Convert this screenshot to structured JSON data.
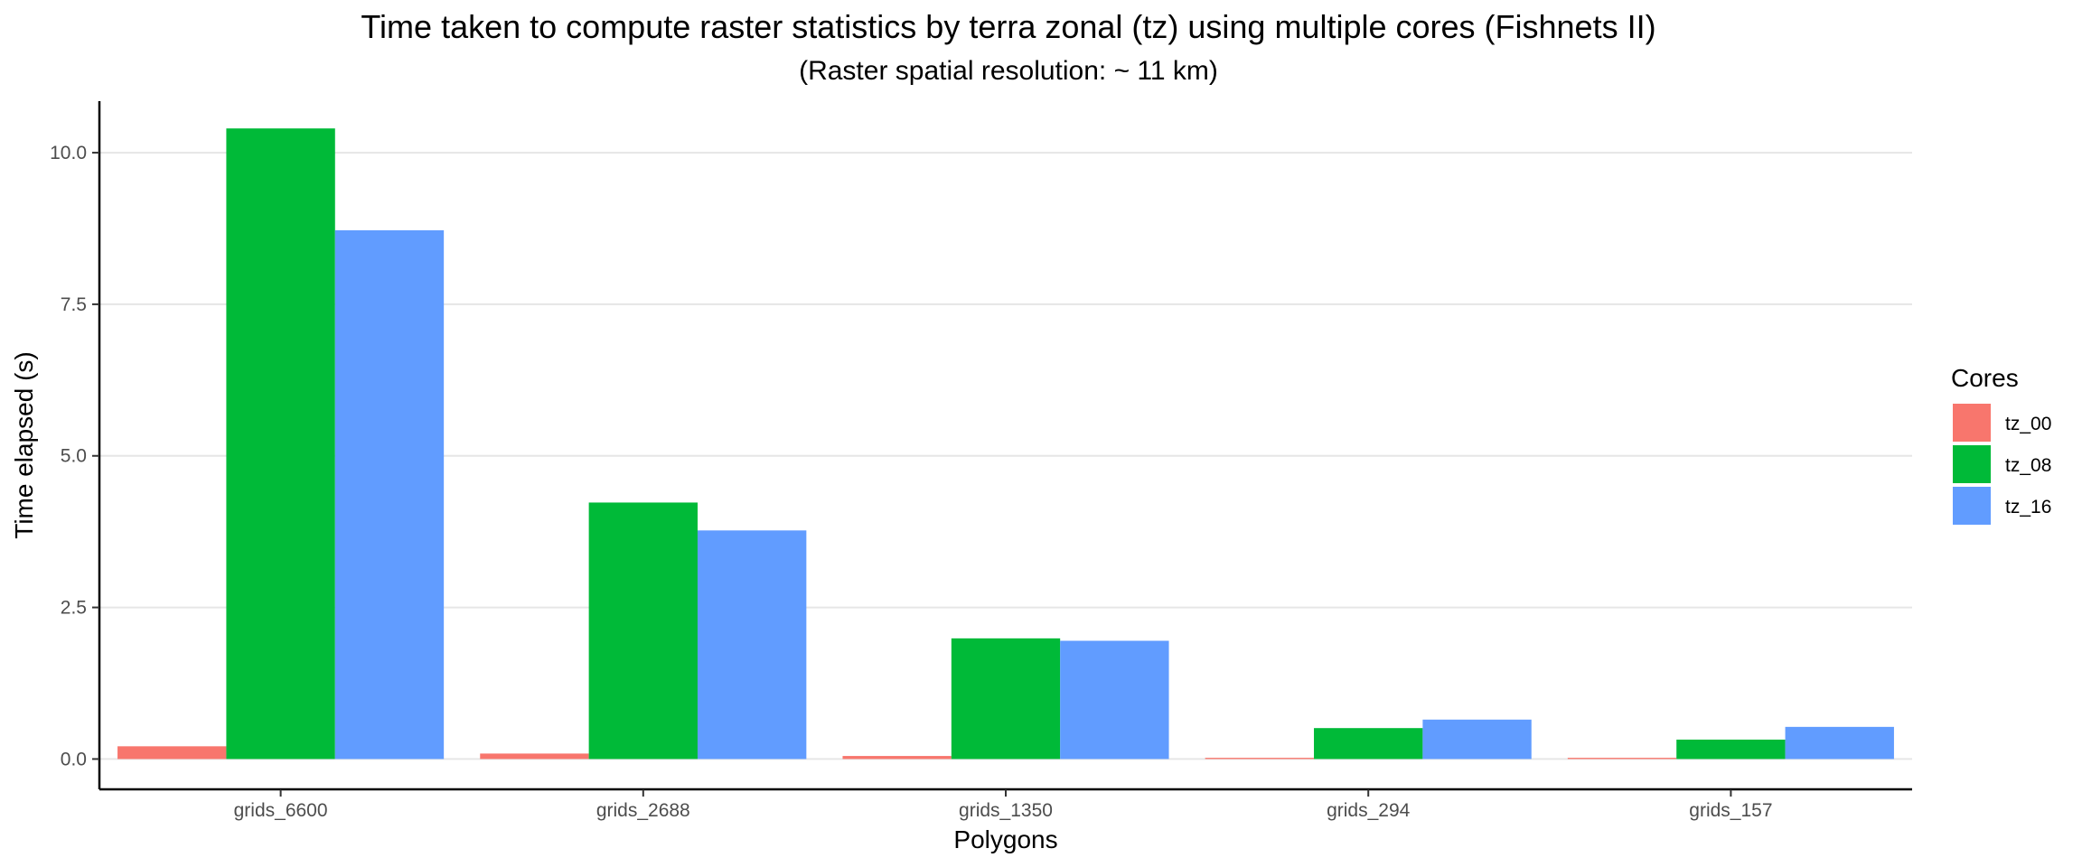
{
  "chart_data": {
    "type": "bar",
    "title": "Time taken to compute raster statistics by terra zonal (tz) using multiple cores (Fishnets II)",
    "subtitle": "(Raster spatial resolution: ~ 11 km)",
    "xlabel": "Polygons",
    "ylabel": "Time elapsed (s)",
    "categories": [
      "grids_6600",
      "grids_2688",
      "grids_1350",
      "grids_294",
      "grids_157"
    ],
    "series": [
      {
        "name": "tz_00",
        "color": "#F8766D",
        "values": [
          0.21,
          0.09,
          0.05,
          0.02,
          0.02
        ]
      },
      {
        "name": "tz_08",
        "color": "#00BA38",
        "values": [
          10.4,
          4.23,
          1.99,
          0.51,
          0.32
        ]
      },
      {
        "name": "tz_16",
        "color": "#619CFF",
        "values": [
          8.72,
          3.77,
          1.95,
          0.65,
          0.53
        ]
      }
    ],
    "ylim": [
      -0.5,
      10.85
    ],
    "yticks": [
      0.0,
      2.5,
      5.0,
      7.5,
      10.0
    ],
    "ytick_labels": [
      "0.0",
      "2.5",
      "5.0",
      "7.5",
      "10.0"
    ],
    "grid": "horizontal",
    "legend": {
      "title": "Cores",
      "position": "right"
    }
  }
}
